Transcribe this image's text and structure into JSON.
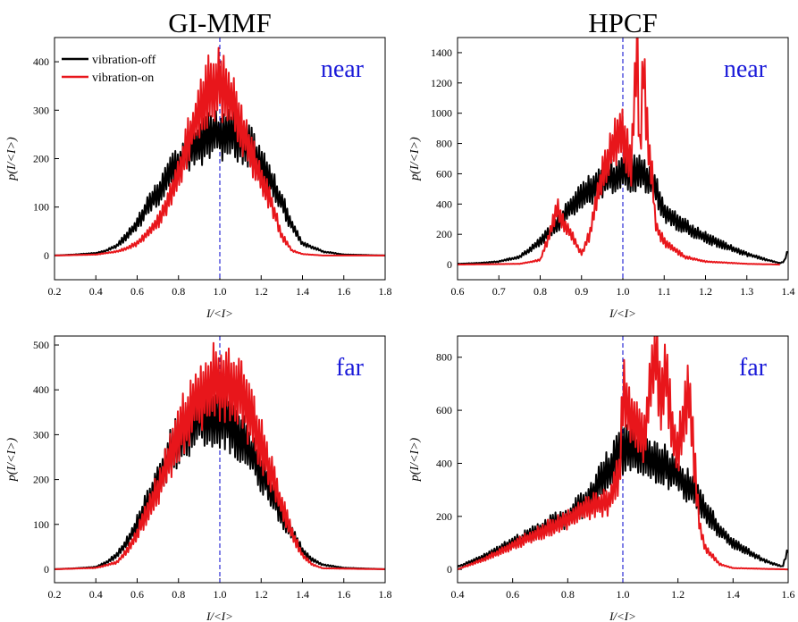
{
  "column_titles": {
    "left": "GI-MMF",
    "right": "HPCF"
  },
  "colors": {
    "off": "#000000",
    "on": "#e8161b",
    "ref": "#2b2bd6",
    "tag": "#1a1ad9"
  },
  "legend": {
    "off": "vibration-off",
    "on": "vibration-on"
  },
  "chart_data": [
    {
      "type": "line",
      "panel": "GI-MMF near",
      "tag": "near",
      "xlabel": "I/<I>",
      "ylabel": "p(I/<I>)",
      "xlim": [
        0.2,
        1.8
      ],
      "ylim": [
        -50,
        450
      ],
      "xticks": [
        "0.2",
        "0.4",
        "0.6",
        "0.8",
        "1.0",
        "1.2",
        "1.4",
        "1.6",
        "1.8"
      ],
      "yticks": [
        "0",
        "100",
        "200",
        "300",
        "400"
      ],
      "ref_line_x": 1.0,
      "legend_position": "top-left",
      "series": [
        {
          "name": "vibration-off",
          "color": "off",
          "x": [
            0.2,
            0.3,
            0.4,
            0.45,
            0.5,
            0.55,
            0.6,
            0.65,
            0.7,
            0.75,
            0.8,
            0.85,
            0.9,
            0.95,
            1.0,
            1.05,
            1.1,
            1.15,
            1.2,
            1.25,
            1.3,
            1.35,
            1.4,
            1.5,
            1.6,
            1.8
          ],
          "y": [
            0,
            2,
            5,
            10,
            20,
            40,
            65,
            100,
            130,
            160,
            190,
            215,
            235,
            245,
            250,
            250,
            240,
            220,
            190,
            150,
            110,
            60,
            25,
            8,
            2,
            0
          ]
        },
        {
          "name": "vibration-on",
          "color": "on",
          "x": [
            0.2,
            0.4,
            0.5,
            0.55,
            0.6,
            0.65,
            0.7,
            0.75,
            0.8,
            0.85,
            0.9,
            0.95,
            1.0,
            1.05,
            1.1,
            1.15,
            1.2,
            1.25,
            1.3,
            1.35,
            1.4,
            1.5,
            1.8
          ],
          "y": [
            0,
            2,
            8,
            15,
            25,
            45,
            70,
            110,
            170,
            240,
            300,
            345,
            355,
            330,
            270,
            210,
            160,
            110,
            40,
            10,
            3,
            0,
            0
          ]
        }
      ]
    },
    {
      "type": "line",
      "panel": "HPCF near",
      "tag": "near",
      "xlabel": "I/<I>",
      "ylabel": "p(I/<I>)",
      "xlim": [
        0.6,
        1.4
      ],
      "ylim": [
        -100,
        1500
      ],
      "xticks": [
        "0.6",
        "0.7",
        "0.8",
        "0.9",
        "1.0",
        "1.1",
        "1.2",
        "1.3",
        "1.4"
      ],
      "yticks": [
        "0",
        "200",
        "400",
        "600",
        "800",
        "1000",
        "1200",
        "1400"
      ],
      "ref_line_x": 1.0,
      "series": [
        {
          "name": "vibration-off",
          "color": "off",
          "x": [
            0.6,
            0.65,
            0.7,
            0.75,
            0.8,
            0.85,
            0.9,
            0.95,
            1.0,
            1.05,
            1.08,
            1.1,
            1.15,
            1.2,
            1.25,
            1.3,
            1.35,
            1.38,
            1.39,
            1.4
          ],
          "y": [
            5,
            10,
            20,
            50,
            150,
            300,
            450,
            550,
            600,
            600,
            500,
            350,
            250,
            180,
            120,
            70,
            30,
            10,
            20,
            100
          ]
        },
        {
          "name": "vibration-on",
          "color": "on",
          "x": [
            0.6,
            0.75,
            0.8,
            0.82,
            0.84,
            0.85,
            0.87,
            0.9,
            0.92,
            0.95,
            0.98,
            1.0,
            1.02,
            1.035,
            1.04,
            1.05,
            1.06,
            1.07,
            1.08,
            1.1,
            1.15,
            1.2,
            1.3,
            1.38
          ],
          "y": [
            0,
            5,
            30,
            180,
            380,
            300,
            220,
            70,
            200,
            600,
            800,
            850,
            650,
            1420,
            700,
            1300,
            800,
            600,
            250,
            150,
            50,
            20,
            5,
            0
          ]
        }
      ]
    },
    {
      "type": "line",
      "panel": "GI-MMF far",
      "tag": "far",
      "xlabel": "I/<I>",
      "ylabel": "p(I/<I>)",
      "xlim": [
        0.2,
        1.8
      ],
      "ylim": [
        -30,
        520
      ],
      "xticks": [
        "0.2",
        "0.4",
        "0.6",
        "0.8",
        "1.0",
        "1.2",
        "1.4",
        "1.6",
        "1.8"
      ],
      "yticks": [
        "0",
        "100",
        "200",
        "300",
        "400",
        "500"
      ],
      "ref_line_x": 1.0,
      "series": [
        {
          "name": "vibration-off",
          "color": "off",
          "x": [
            0.2,
            0.3,
            0.4,
            0.45,
            0.5,
            0.55,
            0.6,
            0.65,
            0.7,
            0.75,
            0.8,
            0.85,
            0.9,
            0.95,
            1.0,
            1.05,
            1.1,
            1.15,
            1.2,
            1.25,
            1.3,
            1.35,
            1.4,
            1.45,
            1.5,
            1.6,
            1.8
          ],
          "y": [
            0,
            2,
            5,
            15,
            30,
            60,
            100,
            150,
            200,
            250,
            290,
            320,
            340,
            350,
            345,
            330,
            300,
            260,
            220,
            170,
            120,
            80,
            40,
            20,
            10,
            3,
            0
          ]
        },
        {
          "name": "vibration-on",
          "color": "on",
          "x": [
            0.2,
            0.4,
            0.5,
            0.55,
            0.6,
            0.65,
            0.7,
            0.75,
            0.8,
            0.85,
            0.9,
            0.95,
            1.0,
            1.05,
            1.1,
            1.15,
            1.2,
            1.25,
            1.3,
            1.35,
            1.4,
            1.45,
            1.5,
            1.8
          ],
          "y": [
            0,
            3,
            15,
            40,
            80,
            130,
            180,
            240,
            300,
            350,
            390,
            410,
            420,
            420,
            390,
            340,
            280,
            210,
            140,
            80,
            30,
            10,
            2,
            0
          ]
        }
      ]
    },
    {
      "type": "line",
      "panel": "HPCF far",
      "tag": "far",
      "xlabel": "I/<I>",
      "ylabel": "p(I/<I>)",
      "xlim": [
        0.4,
        1.6
      ],
      "ylim": [
        -50,
        880
      ],
      "xticks": [
        "0.4",
        "0.6",
        "0.8",
        "1.0",
        "1.2",
        "1.4",
        "1.6"
      ],
      "yticks": [
        "0",
        "200",
        "400",
        "600",
        "800"
      ],
      "ref_line_x": 1.0,
      "series": [
        {
          "name": "vibration-off",
          "color": "off",
          "x": [
            0.4,
            0.5,
            0.6,
            0.7,
            0.8,
            0.85,
            0.9,
            0.95,
            1.0,
            1.05,
            1.1,
            1.15,
            1.2,
            1.25,
            1.3,
            1.35,
            1.4,
            1.45,
            1.5,
            1.55,
            1.58,
            1.6
          ],
          "y": [
            10,
            50,
            100,
            150,
            200,
            240,
            300,
            380,
            450,
            440,
            420,
            390,
            350,
            300,
            220,
            150,
            100,
            70,
            40,
            20,
            10,
            80
          ]
        },
        {
          "name": "vibration-on",
          "color": "on",
          "x": [
            0.4,
            0.5,
            0.6,
            0.7,
            0.8,
            0.85,
            0.9,
            0.95,
            0.99,
            1.0,
            1.02,
            1.05,
            1.08,
            1.1,
            1.12,
            1.14,
            1.16,
            1.18,
            1.2,
            1.22,
            1.24,
            1.26,
            1.28,
            1.3,
            1.35,
            1.4,
            1.6
          ],
          "y": [
            0,
            40,
            90,
            140,
            190,
            220,
            240,
            260,
            380,
            680,
            600,
            520,
            500,
            700,
            800,
            650,
            750,
            500,
            450,
            550,
            660,
            400,
            160,
            80,
            20,
            5,
            0
          ]
        }
      ]
    }
  ]
}
